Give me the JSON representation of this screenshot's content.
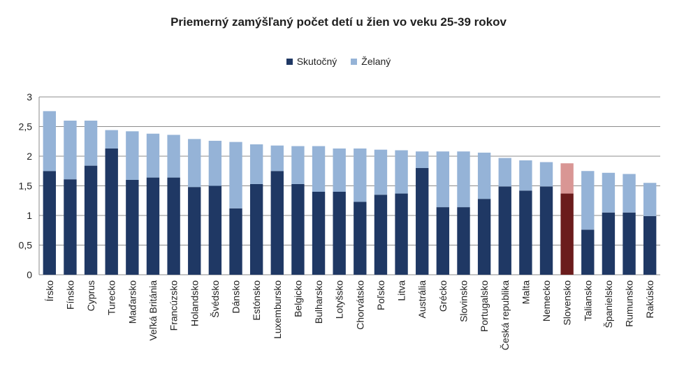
{
  "chart_data": {
    "type": "bar",
    "stacked": true,
    "title": "Priemerný zamýšľaný  počet detí u žien vo veku 25-39 rokov",
    "xlabel": "",
    "ylabel": "",
    "ylim": [
      0,
      3
    ],
    "yticks": [
      "0",
      "0,5",
      "1",
      "1,5",
      "2",
      "2,5",
      "3"
    ],
    "grid": true,
    "legend_position": "top",
    "categories": [
      "Írsko",
      "Fínsko",
      "Cyprus",
      "Turecko",
      "Maďarsko",
      "Veľká Británia",
      "Francúzsko",
      "Holandsko",
      "Švédsko",
      "Dánsko",
      "Estónsko",
      "Luxembursko",
      "Belgicko",
      "Bulharsko",
      "Lotyšsko",
      "Chorvátsko",
      "Poľsko",
      "Litva",
      "Austrália",
      "Grécko",
      "Slovinsko",
      "Portugalsko",
      "Česká republika",
      "Malta",
      "Nemecko",
      "Slovensko",
      "Taliansko",
      "Španielsko",
      "Rumunsko",
      "Rakúsko"
    ],
    "series": [
      {
        "name": "Skutočný",
        "color": "#1f3864",
        "values": [
          1.75,
          1.61,
          1.84,
          2.13,
          1.6,
          1.64,
          1.64,
          1.48,
          1.5,
          1.12,
          1.53,
          1.75,
          1.53,
          1.4,
          1.4,
          1.23,
          1.35,
          1.37,
          1.8,
          1.14,
          1.14,
          1.28,
          1.49,
          1.42,
          1.49,
          1.37,
          0.76,
          1.05,
          1.05,
          0.99
        ]
      },
      {
        "name": "Želaný",
        "color": "#95b3d7",
        "values": [
          1.01,
          0.99,
          0.76,
          0.31,
          0.82,
          0.74,
          0.72,
          0.81,
          0.76,
          1.12,
          0.67,
          0.43,
          0.64,
          0.77,
          0.73,
          0.9,
          0.76,
          0.73,
          0.28,
          0.94,
          0.94,
          0.78,
          0.48,
          0.51,
          0.41,
          0.51,
          0.99,
          0.67,
          0.65,
          0.56
        ]
      }
    ],
    "highlight": {
      "category": "Slovensko",
      "colors": [
        "#6b1c1c",
        "#d99694"
      ]
    }
  }
}
